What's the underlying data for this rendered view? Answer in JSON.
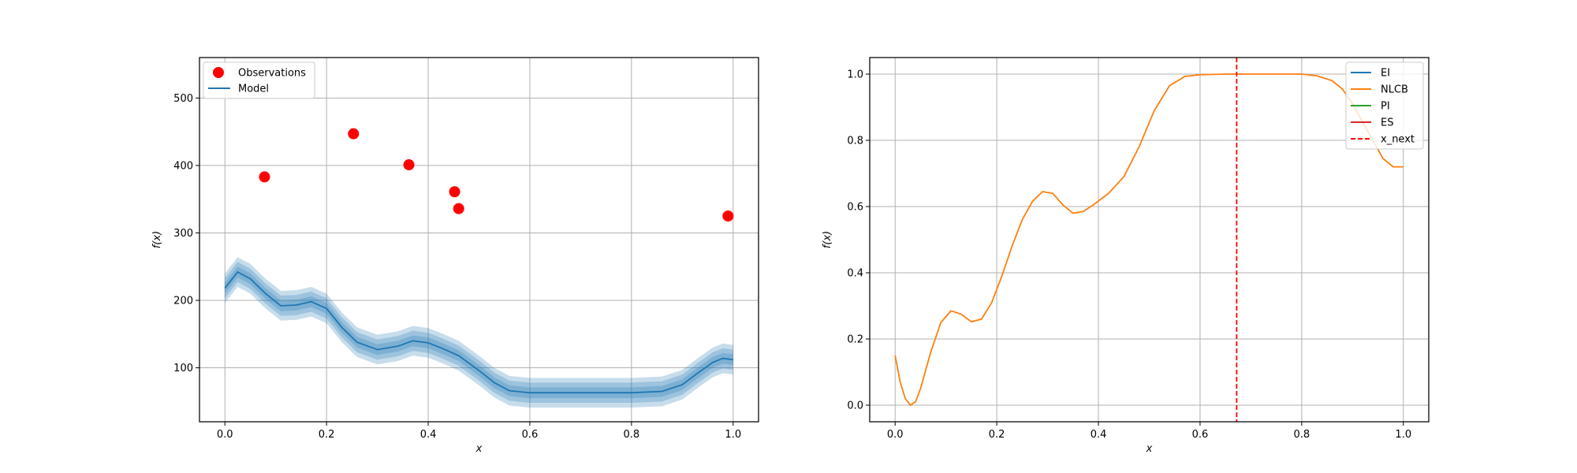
{
  "chart_data": [
    {
      "type": "line",
      "title": "",
      "xlabel": "x",
      "ylabel": "f(x)",
      "xlim": [
        -0.05,
        1.05
      ],
      "ylim": [
        20,
        560
      ],
      "xticks": [
        "0.0",
        "0.2",
        "0.4",
        "0.6",
        "0.8",
        "1.0"
      ],
      "yticks": [
        "100",
        "200",
        "300",
        "400",
        "500"
      ],
      "grid": true,
      "legend": {
        "location": "top-left",
        "entries": [
          "Observations",
          "Model"
        ]
      },
      "colors": {
        "observations": "#ff0000",
        "model": "#1f77b4"
      },
      "observations": {
        "name": "Observations",
        "x": [
          0.078,
          0.253,
          0.362,
          0.452,
          0.46,
          0.99
        ],
        "y": [
          383,
          447,
          401,
          361,
          336,
          325
        ]
      },
      "model": {
        "name": "Model",
        "x": [
          0.0,
          0.025,
          0.05,
          0.08,
          0.11,
          0.14,
          0.17,
          0.2,
          0.23,
          0.26,
          0.3,
          0.34,
          0.37,
          0.4,
          0.43,
          0.46,
          0.5,
          0.53,
          0.56,
          0.6,
          0.7,
          0.8,
          0.86,
          0.9,
          0.93,
          0.96,
          0.98,
          1.0
        ],
        "mean": [
          218,
          242,
          232,
          210,
          192,
          193,
          198,
          188,
          160,
          138,
          127,
          132,
          140,
          137,
          128,
          118,
          96,
          78,
          66,
          63,
          63,
          63,
          65,
          75,
          92,
          108,
          114,
          112
        ],
        "bands_halfwidth": [
          8,
          15,
          22
        ]
      }
    },
    {
      "type": "line",
      "title": "",
      "xlabel": "x",
      "ylabel": "f(x)",
      "xlim": [
        -0.05,
        1.05
      ],
      "ylim": [
        -0.05,
        1.05
      ],
      "xticks": [
        "0.0",
        "0.2",
        "0.4",
        "0.6",
        "0.8",
        "1.0"
      ],
      "yticks": [
        "0.0",
        "0.2",
        "0.4",
        "0.6",
        "0.8",
        "1.0"
      ],
      "grid": true,
      "legend": {
        "location": "top-right",
        "entries": [
          "EI",
          "NLCB",
          "PI",
          "ES",
          "x_next"
        ]
      },
      "series": [
        {
          "name": "EI",
          "color": "#1f77b4",
          "x": [],
          "y": []
        },
        {
          "name": "NLCB",
          "color": "#ff7f0e",
          "x": [
            0.0,
            0.01,
            0.02,
            0.03,
            0.04,
            0.05,
            0.07,
            0.09,
            0.11,
            0.13,
            0.15,
            0.17,
            0.19,
            0.21,
            0.23,
            0.25,
            0.27,
            0.29,
            0.31,
            0.33,
            0.35,
            0.37,
            0.39,
            0.42,
            0.45,
            0.48,
            0.51,
            0.54,
            0.57,
            0.6,
            0.65,
            0.7,
            0.75,
            0.8,
            0.83,
            0.86,
            0.88,
            0.9,
            0.92,
            0.94,
            0.96,
            0.98,
            1.0
          ],
          "y": [
            0.15,
            0.07,
            0.02,
            0.0,
            0.01,
            0.05,
            0.16,
            0.25,
            0.285,
            0.275,
            0.252,
            0.26,
            0.31,
            0.39,
            0.48,
            0.56,
            0.615,
            0.645,
            0.64,
            0.605,
            0.58,
            0.585,
            0.605,
            0.64,
            0.69,
            0.78,
            0.89,
            0.965,
            0.993,
            0.998,
            1.0,
            1.0,
            1.0,
            1.0,
            0.995,
            0.98,
            0.955,
            0.91,
            0.855,
            0.8,
            0.745,
            0.72,
            0.72
          ]
        },
        {
          "name": "PI",
          "color": "#2ca02c",
          "x": [],
          "y": []
        },
        {
          "name": "ES",
          "color": "#d62728",
          "x": [],
          "y": []
        }
      ],
      "x_next": {
        "name": "x_next",
        "x": 0.672,
        "color": "#ff0000"
      }
    }
  ]
}
